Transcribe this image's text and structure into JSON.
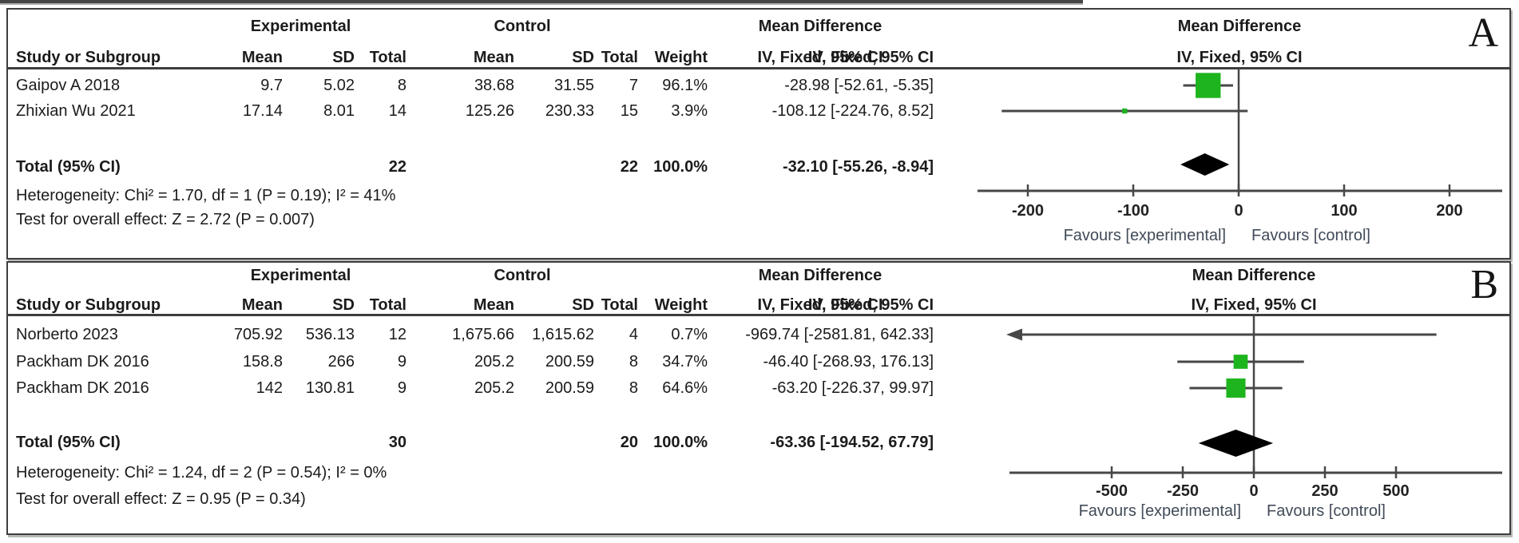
{
  "colors": {
    "marker_green": "#1eb41e",
    "diamond_black": "#000000",
    "line_gray": "#474747",
    "tick_text": "#222222"
  },
  "panels": [
    {
      "label": "A",
      "header": {
        "study": "Study or Subgroup",
        "group1": "Experimental",
        "group2": "Control",
        "mean": "Mean",
        "sd": "SD",
        "total": "Total",
        "weight": "Weight",
        "md_title": "Mean Difference",
        "md_sub": "IV, Fixed, 95% CI"
      },
      "rows": [
        {
          "study": "Gaipov A 2018",
          "mean1": "9.7",
          "sd1": "5.02",
          "total1": "8",
          "mean2": "38.68",
          "sd2": "31.55",
          "total2": "7",
          "weight": "96.1%",
          "ci": "-28.98 [-52.61, -5.35]"
        },
        {
          "study": "Zhixian Wu 2021",
          "mean1": "17.14",
          "sd1": "8.01",
          "total1": "14",
          "mean2": "125.26",
          "sd2": "230.33",
          "total2": "15",
          "weight": "3.9%",
          "ci": "-108.12 [-224.76, 8.52]"
        }
      ],
      "total_row": {
        "label": "Total (95% CI)",
        "total1": "22",
        "total2": "22",
        "weight": "100.0%",
        "ci": "-32.10 [-55.26, -8.94]"
      },
      "heterogeneity": "Heterogeneity: Chi² = 1.70, df = 1 (P = 0.19); I² = 41%",
      "overall_effect": "Test for overall effect: Z = 2.72 (P = 0.007)",
      "favours_left": "Favours [experimental]",
      "favours_right": "Favours [control]"
    },
    {
      "label": "B",
      "header": {
        "study": "Study or Subgroup",
        "group1": "Experimental",
        "group2": "Control",
        "mean": "Mean",
        "sd": "SD",
        "total": "Total",
        "weight": "Weight",
        "md_title": "Mean Difference",
        "md_sub": "IV, Fixed, 95% CI"
      },
      "rows": [
        {
          "study": "Norberto 2023",
          "mean1": "705.92",
          "sd1": "536.13",
          "total1": "12",
          "mean2": "1,675.66",
          "sd2": "1,615.62",
          "total2": "4",
          "weight": "0.7%",
          "ci": "-969.74 [-2581.81, 642.33]"
        },
        {
          "study": "Packham DK 2016",
          "mean1": "158.8",
          "sd1": "266",
          "total1": "9",
          "mean2": "205.2",
          "sd2": "200.59",
          "total2": "8",
          "weight": "34.7%",
          "ci": "-46.40 [-268.93, 176.13]"
        },
        {
          "study": "Packham DK 2016",
          "mean1": "142",
          "sd1": "130.81",
          "total1": "9",
          "mean2": "205.2",
          "sd2": "200.59",
          "total2": "8",
          "weight": "64.6%",
          "ci": "-63.20 [-226.37, 99.97]"
        }
      ],
      "total_row": {
        "label": "Total (95% CI)",
        "total1": "30",
        "total2": "20",
        "weight": "100.0%",
        "ci": "-63.36 [-194.52, 67.79]"
      },
      "heterogeneity": "Heterogeneity: Chi² = 1.24, df = 2 (P = 0.54); I² = 0%",
      "overall_effect": "Test for overall effect: Z = 0.95 (P = 0.34)",
      "favours_left": "Favours [experimental]",
      "favours_right": "Favours [control]"
    }
  ],
  "chart_data": [
    {
      "type": "forest",
      "panel": "A",
      "effect_measure": "Mean Difference",
      "model": "IV, Fixed, 95% CI",
      "studies": [
        {
          "name": "Gaipov A 2018",
          "md": -28.98,
          "ci_low": -52.61,
          "ci_high": -5.35,
          "weight_pct": 96.1
        },
        {
          "name": "Zhixian Wu 2021",
          "md": -108.12,
          "ci_low": -224.76,
          "ci_high": 8.52,
          "weight_pct": 3.9
        }
      ],
      "total": {
        "md": -32.1,
        "ci_low": -55.26,
        "ci_high": -8.94
      },
      "axis": {
        "ticks": [
          -200,
          -100,
          0,
          100,
          200
        ],
        "range": [
          -250,
          250
        ]
      },
      "favours_left": "Favours [experimental]",
      "favours_right": "Favours [control]"
    },
    {
      "type": "forest",
      "panel": "B",
      "effect_measure": "Mean Difference",
      "model": "IV, Fixed, 95% CI",
      "studies": [
        {
          "name": "Norberto 2023",
          "md": -969.74,
          "ci_low": -2581.81,
          "ci_high": 642.33,
          "weight_pct": 0.7
        },
        {
          "name": "Packham DK 2016",
          "md": -46.4,
          "ci_low": -268.93,
          "ci_high": 176.13,
          "weight_pct": 34.7
        },
        {
          "name": "Packham DK 2016",
          "md": -63.2,
          "ci_low": -226.37,
          "ci_high": 99.97,
          "weight_pct": 64.6
        }
      ],
      "total": {
        "md": -63.36,
        "ci_low": -194.52,
        "ci_high": 67.79
      },
      "axis": {
        "ticks": [
          -500,
          -250,
          0,
          250,
          500
        ],
        "range": [
          -845,
          845
        ]
      },
      "favours_left": "Favours [experimental]",
      "favours_right": "Favours [control]"
    }
  ]
}
